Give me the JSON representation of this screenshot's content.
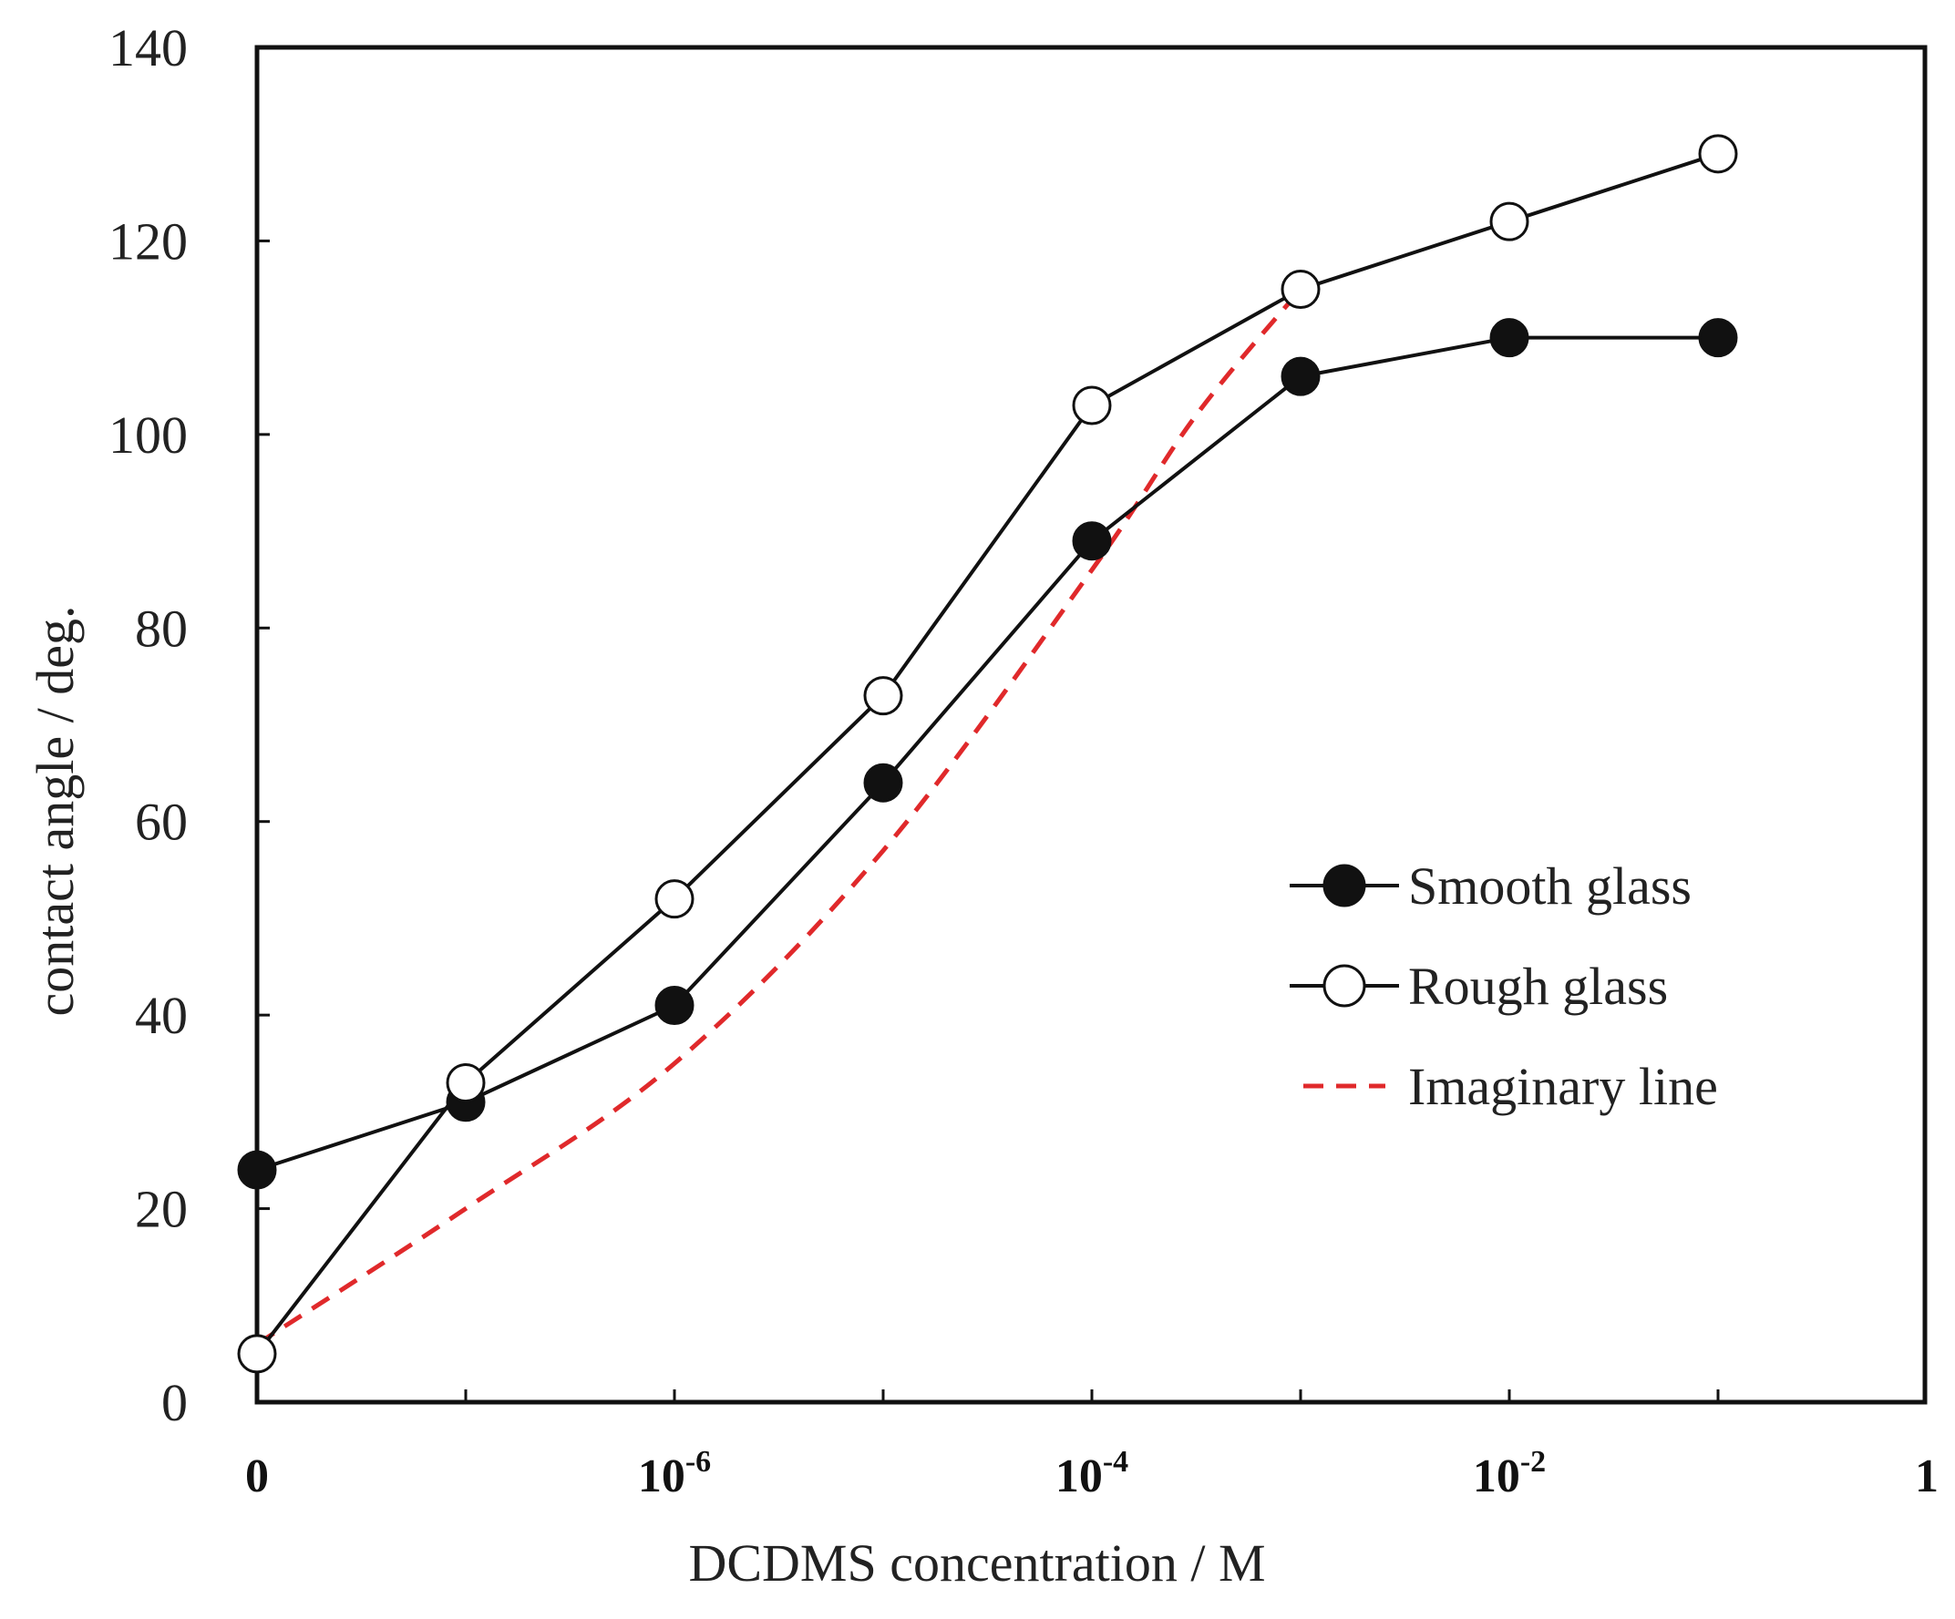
{
  "chart_data": {
    "type": "line",
    "title": "",
    "xlabel": "DCDMS concentration / M",
    "ylabel": "contact angle / deg.",
    "ylim": [
      0,
      140
    ],
    "y_ticks": [
      "0",
      "20",
      "40",
      "60",
      "80",
      "100",
      "120",
      "140"
    ],
    "x_ticks": [
      {
        "pos": 0,
        "base": "0",
        "exp": ""
      },
      {
        "pos": 2,
        "base": "10",
        "exp": "-6"
      },
      {
        "pos": 4,
        "base": "10",
        "exp": "-4"
      },
      {
        "pos": 6,
        "base": "10",
        "exp": "-2"
      },
      {
        "pos": 8,
        "base": "1",
        "exp": ""
      }
    ],
    "x_positions": [
      0,
      1,
      2,
      3,
      4,
      5,
      6,
      7
    ],
    "series": [
      {
        "name": "Smooth glass",
        "marker": "filled-circle",
        "style": "solid",
        "values": [
          24,
          31,
          41,
          64,
          89,
          106,
          110,
          110
        ]
      },
      {
        "name": "Rough glass",
        "marker": "open-circle",
        "style": "solid",
        "values": [
          5,
          33,
          52,
          73,
          103,
          115,
          122,
          129
        ]
      },
      {
        "name": "Imaginary line",
        "marker": "none",
        "style": "dashed",
        "color": "#e0292b",
        "x": [
          0,
          1,
          2,
          3,
          4,
          4.5,
          5
        ],
        "values": [
          6,
          20,
          35,
          57,
          86,
          102,
          115
        ]
      }
    ],
    "legend": "right-middle"
  }
}
